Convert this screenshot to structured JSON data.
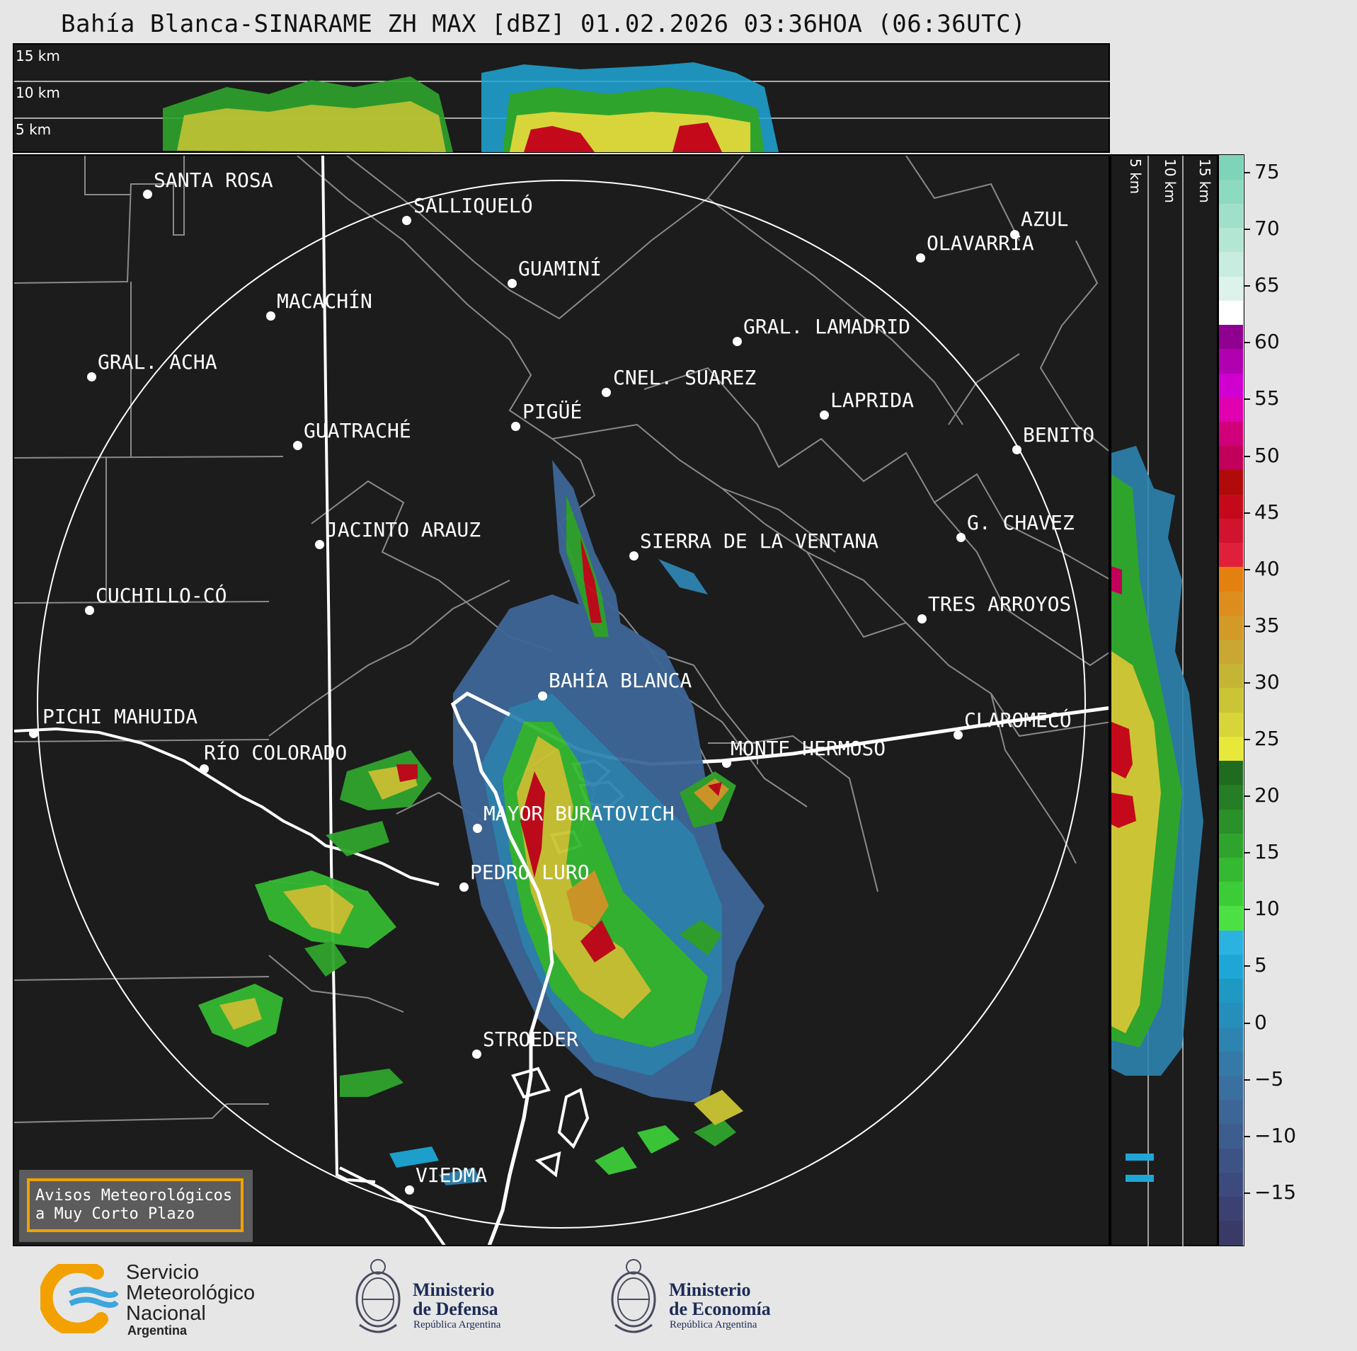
{
  "title": "Bahía Blanca-SINARAME ZH MAX [dBZ] 01.02.2026 03:36HOA (06:36UTC)",
  "top_panel": {
    "height_labels": [
      "15 km",
      "10 km",
      "5 km"
    ]
  },
  "side_panel": {
    "height_labels": [
      "5 km",
      "10 km",
      "15 km"
    ]
  },
  "map": {
    "cities": [
      {
        "name": "SANTA ROSA"
      },
      {
        "name": "SALLIQUELÓ"
      },
      {
        "name": "AZUL"
      },
      {
        "name": "OLAVARRÍA"
      },
      {
        "name": "GUAMINÍ"
      },
      {
        "name": "MACACHÍN"
      },
      {
        "name": "GRAL. LAMADRID"
      },
      {
        "name": "GRAL. ACHA"
      },
      {
        "name": "CNEL. SUAREZ"
      },
      {
        "name": "LAPRIDA"
      },
      {
        "name": "PIGÜÉ"
      },
      {
        "name": "GUATRACHÉ"
      },
      {
        "name": "BENITO"
      },
      {
        "name": "G. CHAVEZ"
      },
      {
        "name": "JACINTO ARAUZ"
      },
      {
        "name": "SIERRA DE LA VENTANA"
      },
      {
        "name": "CUCHILLO-CÓ"
      },
      {
        "name": "TRES ARROYOS"
      },
      {
        "name": "BAHÍA BLANCA"
      },
      {
        "name": "PICHI MAHUIDA"
      },
      {
        "name": "CLAROMECÓ"
      },
      {
        "name": "RÍO COLORADO"
      },
      {
        "name": "MONTE HERMOSO"
      },
      {
        "name": "MAYOR BURATOVICH"
      },
      {
        "name": "PEDRO LURO"
      },
      {
        "name": "STROEDER"
      },
      {
        "name": "VIEDMA"
      }
    ]
  },
  "colorbar": {
    "unit": "dBZ",
    "tick_labels": [
      "75",
      "70",
      "65",
      "60",
      "55",
      "50",
      "45",
      "40",
      "35",
      "30",
      "25",
      "20",
      "15",
      "10",
      "5",
      "0",
      "−5",
      "−10",
      "−15"
    ],
    "colors_bottom_to_top": [
      "#3a3a66",
      "#3b4172",
      "#3d4a7d",
      "#3d5386",
      "#3d5d8f",
      "#3d6697",
      "#3a709f",
      "#3579a7",
      "#2e84b0",
      "#268ebb",
      "#1e99c4",
      "#1ea7d6",
      "#2cb2e0",
      "#4ce044",
      "#3ccc38",
      "#35b832",
      "#2fa42d",
      "#2a9029",
      "#257e25",
      "#1f6c20",
      "#e8e83a",
      "#d8d53a",
      "#cbc535",
      "#c4b634",
      "#c9a730",
      "#d49a28",
      "#dc8d1e",
      "#e4800f",
      "#e0203a",
      "#d0142e",
      "#c40a1a",
      "#b00a0a",
      "#c0005a",
      "#d0007a",
      "#e000b0",
      "#d000d0",
      "#b000b0",
      "#900090",
      "#ffffff",
      "#ddf2ea",
      "#c8ecdf",
      "#b4e6d4",
      "#a0e0ca",
      "#8cdac0",
      "#7ed4b8"
    ]
  },
  "notice": {
    "text": "Avisos Meteorológicos\na Muy Corto Plazo"
  },
  "logos": {
    "smn": {
      "lines": [
        "Servicio",
        "Meteorológico",
        "Nacional"
      ],
      "country": "Argentina"
    },
    "defensa": {
      "line1": "Ministerio",
      "line2": "de Defensa",
      "sub": "República Argentina"
    },
    "economia": {
      "line1": "Ministerio",
      "line2": "de Economía",
      "sub": "República Argentina"
    }
  }
}
